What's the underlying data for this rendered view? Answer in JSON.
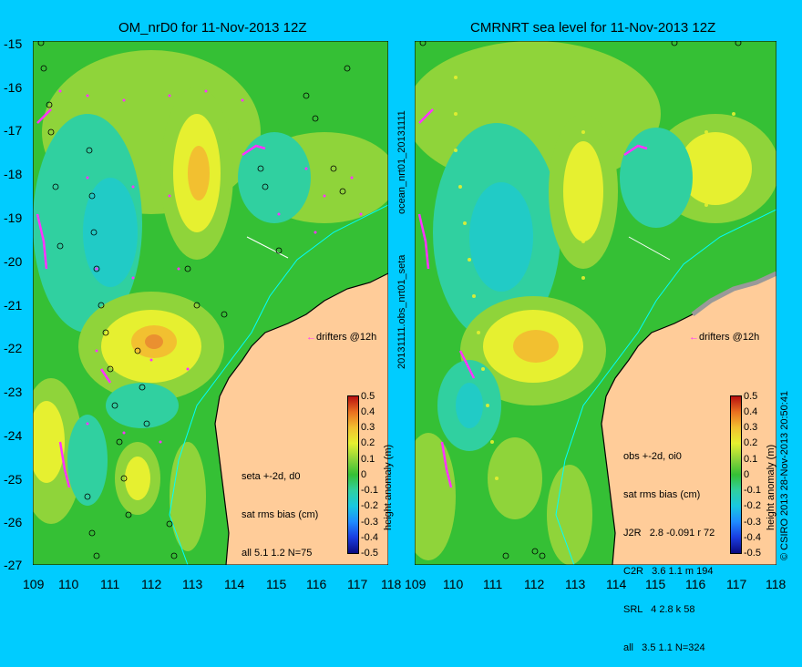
{
  "panels": [
    {
      "title": "OM_nrD0 for 11-Nov-2013 12Z",
      "drifter_label": "drifters @12h",
      "stats": [
        "seta +-2d, d0",
        "sat rms bias (cm)",
        "all 5.1 1.2 N=75"
      ]
    },
    {
      "title": "CMRNRT sea level  for 11-Nov-2013 12Z",
      "drifter_label": "drifters @12h",
      "stats": [
        "obs +-2d, oi0",
        "sat rms bias (cm)",
        "J2R   2.8 -0.091 r 72",
        "C2R   3.6 1.1 m 194",
        "SRL   4 2.8 k 58",
        "all   3.5 1.1 N=324"
      ]
    }
  ],
  "side_labels": {
    "middle_upper": "ocean_nrt01_20131111",
    "middle_lower": "20131111.obs_nrt01_seta",
    "right": "© CSIRO 2013  28-Nov-2013 20:50:41"
  },
  "y_ticks": [
    "-15",
    "-16",
    "-17",
    "-18",
    "-19",
    "-20",
    "-21",
    "-22",
    "-23",
    "-24",
    "-25",
    "-26",
    "-27"
  ],
  "x_ticks": [
    "109",
    "110",
    "111",
    "112",
    "113",
    "114",
    "115",
    "116",
    "117",
    "118"
  ],
  "colorbar": {
    "label": "height anomaly (m)",
    "ticks": [
      "0.5",
      "0.4",
      "0.3",
      "0.2",
      "0.1",
      "0",
      "-0.1",
      "-0.2",
      "-0.3",
      "-0.4",
      "-0.5"
    ]
  },
  "colors": {
    "background": "#00ccff",
    "land": "#ffcc99",
    "drifters": "#ff33ff"
  }
}
